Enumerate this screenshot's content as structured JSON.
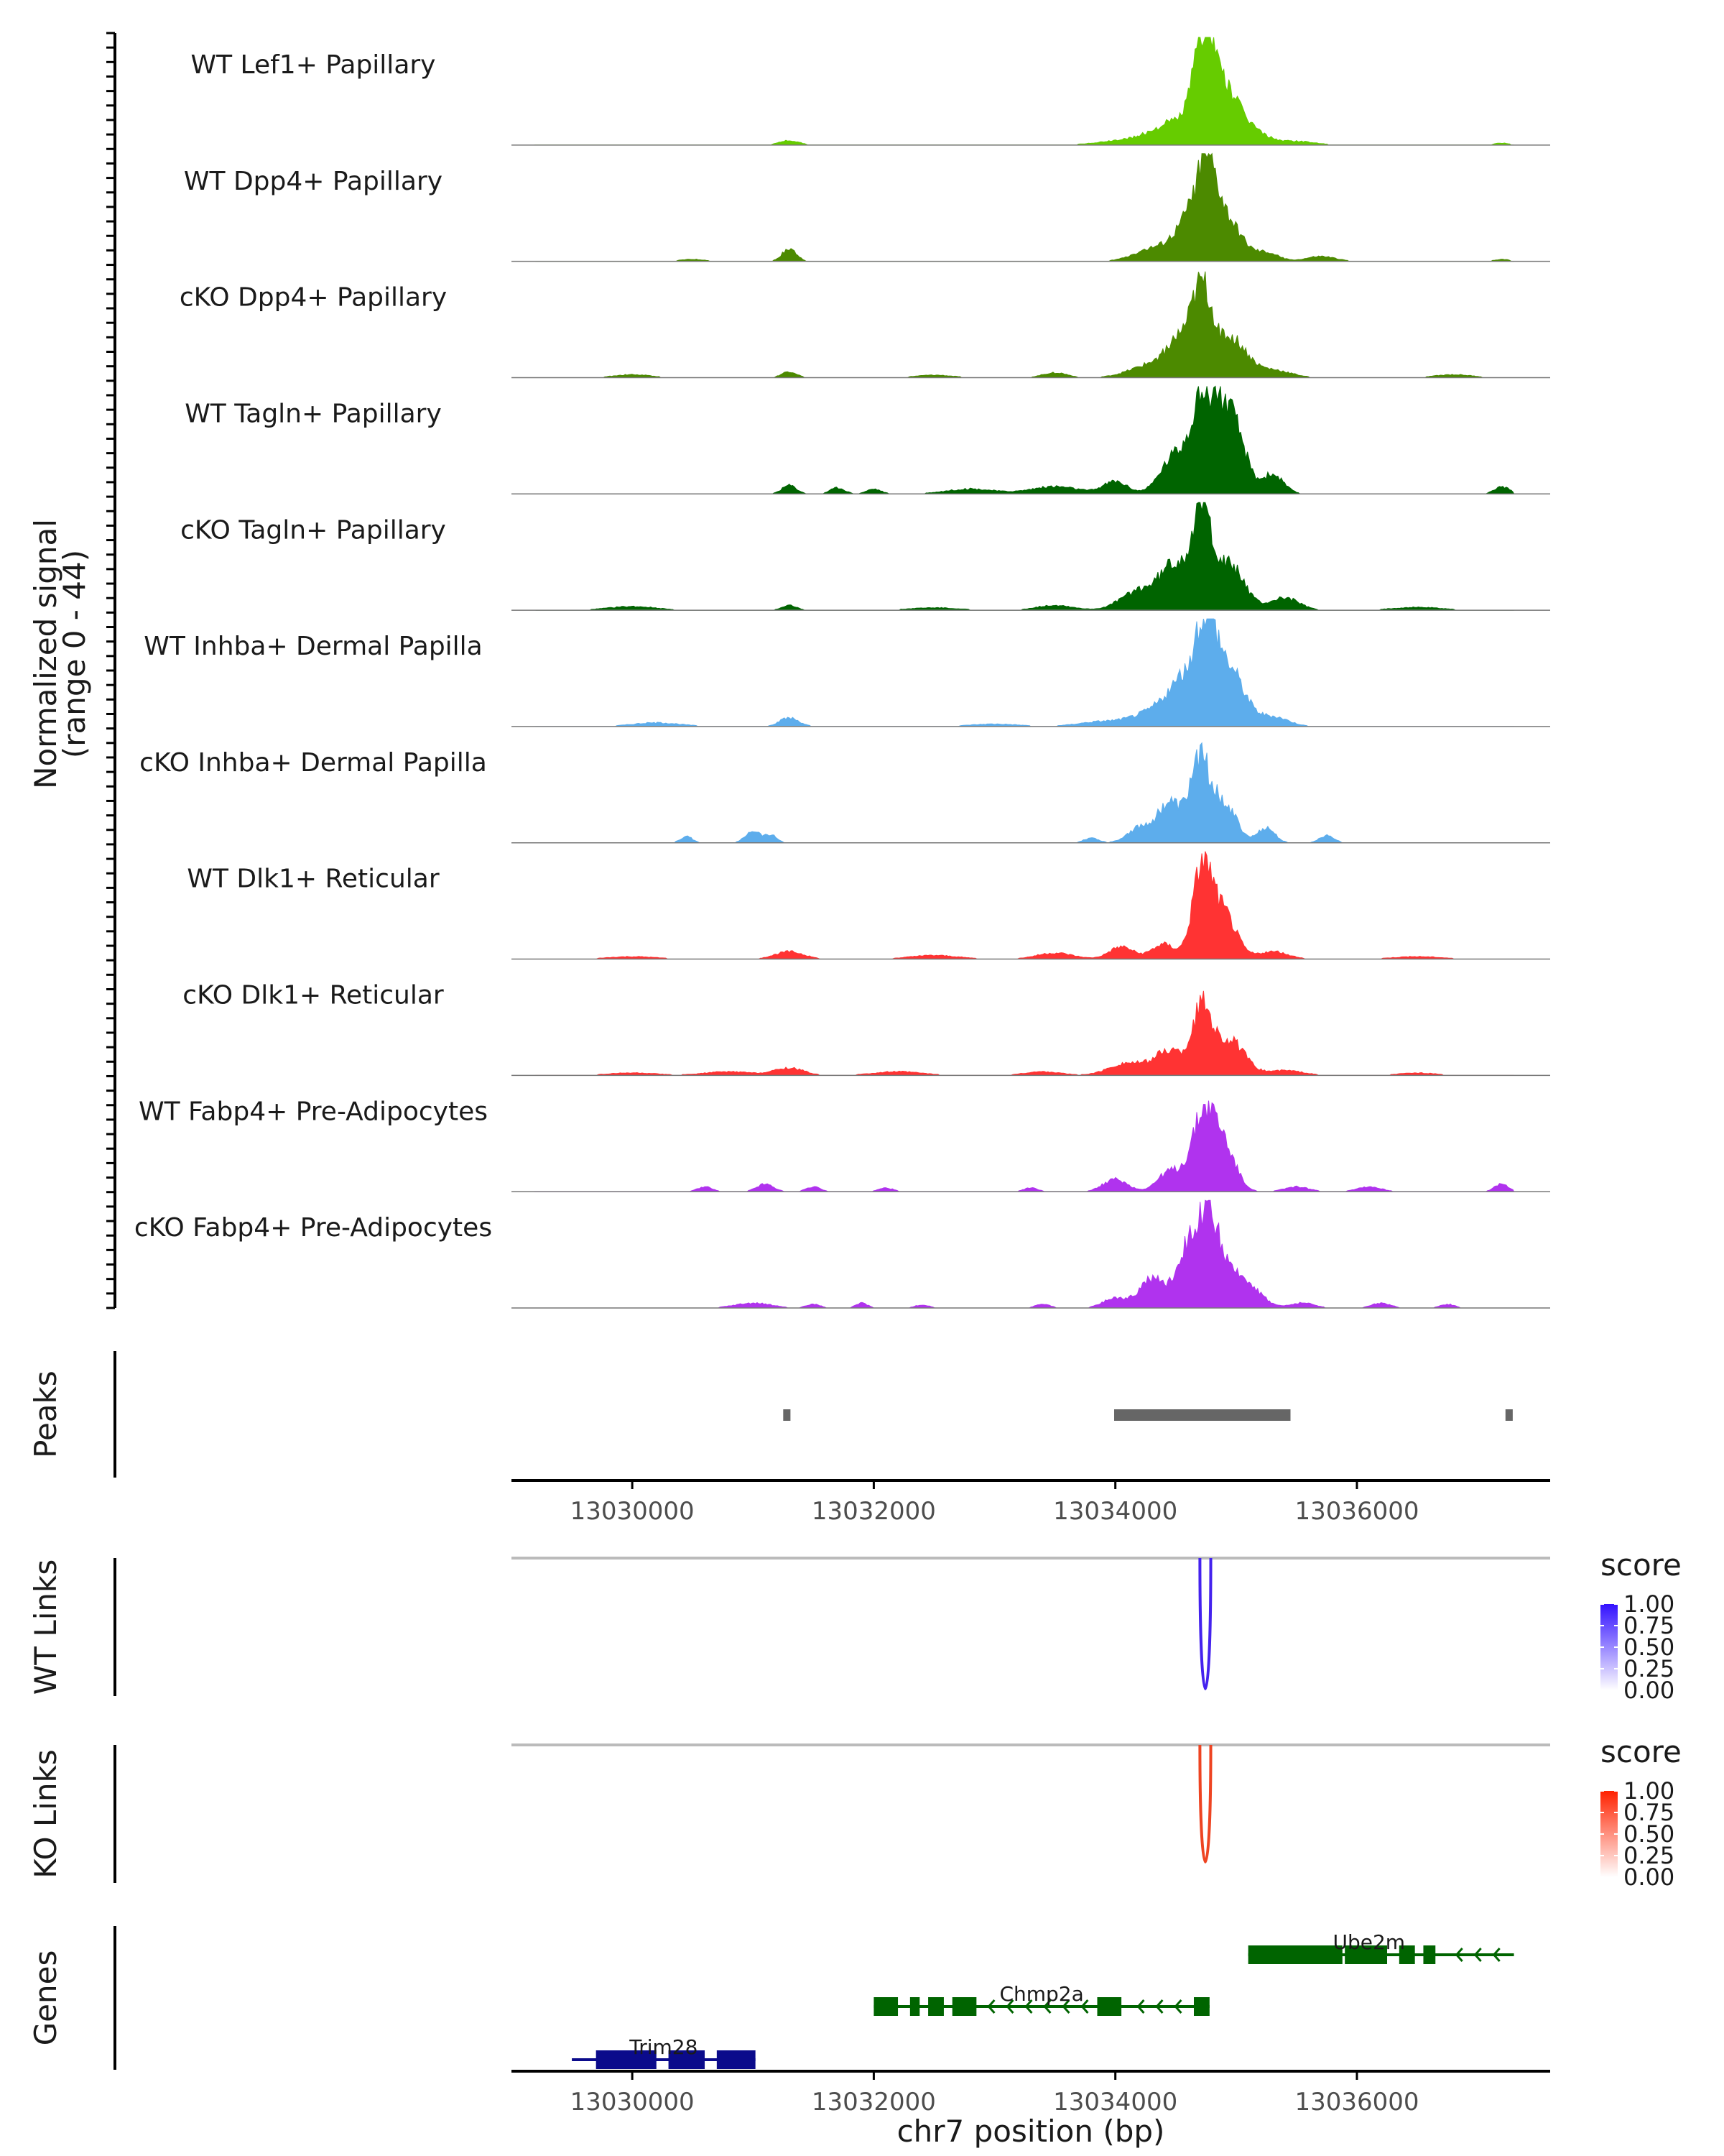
{
  "chart_data": {
    "type": "area",
    "title": "",
    "coverage_axis_label": "Normalized signal",
    "coverage_axis_range_label": "(range 0 - 44)",
    "y_range": [
      0,
      44
    ],
    "x_range": [
      13029000,
      13037600
    ],
    "xlabel": "chr7 position (bp)",
    "x_ticks": [
      13030000,
      13032000,
      13034000,
      13036000
    ],
    "x_tick_labels": [
      "13030000",
      "13032000",
      "13034000",
      "13036000"
    ],
    "tracks": [
      {
        "name": "WT Lef1+ Papillary",
        "color": "#66CC00",
        "peaks": [
          [
            13031300,
            1.8,
            80
          ],
          [
            13034200,
            2.5,
            260
          ],
          [
            13034500,
            8,
            160
          ],
          [
            13034740,
            40,
            90
          ],
          [
            13034900,
            18,
            120
          ],
          [
            13035100,
            6,
            140
          ],
          [
            13035500,
            1.5,
            150
          ],
          [
            13037200,
            0.8,
            60
          ]
        ]
      },
      {
        "name": "WT Dpp4+ Papillary",
        "color": "#4C8A00",
        "peaks": [
          [
            13031300,
            5,
            60
          ],
          [
            13030500,
            0.8,
            100
          ],
          [
            13034300,
            5,
            150
          ],
          [
            13034600,
            14,
            120
          ],
          [
            13034760,
            34,
            90
          ],
          [
            13034950,
            14,
            110
          ],
          [
            13035250,
            3.5,
            100
          ],
          [
            13035700,
            2,
            120
          ],
          [
            13037200,
            0.8,
            60
          ]
        ]
      },
      {
        "name": "cKO Dpp4+ Papillary",
        "color": "#4C8A00",
        "peaks": [
          [
            13030000,
            1.2,
            150
          ],
          [
            13031300,
            2.5,
            60
          ],
          [
            13032500,
            1,
            150
          ],
          [
            13033500,
            2,
            100
          ],
          [
            13034300,
            5,
            180
          ],
          [
            13034550,
            14,
            120
          ],
          [
            13034720,
            30,
            80
          ],
          [
            13034950,
            16,
            130
          ],
          [
            13035300,
            3,
            150
          ],
          [
            13036800,
            1.2,
            150
          ]
        ]
      },
      {
        "name": "WT Tagln+ Papillary",
        "color": "#006400",
        "peaks": [
          [
            13031300,
            3.5,
            60
          ],
          [
            13031700,
            2.5,
            60
          ],
          [
            13032000,
            2,
            60
          ],
          [
            13032800,
            2,
            200
          ],
          [
            13033500,
            3,
            200
          ],
          [
            13034000,
            5,
            100
          ],
          [
            13034500,
            16,
            120
          ],
          [
            13034700,
            32,
            80
          ],
          [
            13034850,
            30,
            80
          ],
          [
            13035000,
            24,
            90
          ],
          [
            13035300,
            8,
            90
          ],
          [
            13037200,
            3,
            60
          ]
        ]
      },
      {
        "name": "cKO Tagln+ Papillary",
        "color": "#006400",
        "peaks": [
          [
            13030000,
            1.5,
            200
          ],
          [
            13031300,
            2,
            60
          ],
          [
            13032500,
            1,
            200
          ],
          [
            13033500,
            2,
            150
          ],
          [
            13034200,
            8,
            150
          ],
          [
            13034500,
            18,
            120
          ],
          [
            13034720,
            38,
            80
          ],
          [
            13034950,
            18,
            120
          ],
          [
            13035400,
            5,
            120
          ],
          [
            13036500,
            1.2,
            200
          ]
        ]
      },
      {
        "name": "WT Inhba+ Dermal Papilla",
        "color": "#5DADEC",
        "peaks": [
          [
            13030200,
            1.5,
            200
          ],
          [
            13031300,
            3.5,
            80
          ],
          [
            13033000,
            1,
            200
          ],
          [
            13033900,
            2,
            200
          ],
          [
            13034300,
            5,
            160
          ],
          [
            13034550,
            16,
            130
          ],
          [
            13034750,
            38,
            90
          ],
          [
            13034950,
            22,
            120
          ],
          [
            13035300,
            4,
            130
          ]
        ]
      },
      {
        "name": "cKO Inhba+ Dermal Papilla",
        "color": "#5DADEC",
        "peaks": [
          [
            13030450,
            2.5,
            50
          ],
          [
            13031000,
            5,
            60
          ],
          [
            13031150,
            3,
            50
          ],
          [
            13033800,
            2,
            60
          ],
          [
            13034200,
            6,
            100
          ],
          [
            13034450,
            16,
            100
          ],
          [
            13034700,
            33,
            80
          ],
          [
            13034900,
            16,
            100
          ],
          [
            13035250,
            6,
            70
          ],
          [
            13035750,
            3,
            60
          ]
        ]
      },
      {
        "name": "WT Dlk1+ Reticular",
        "color": "#FF3333",
        "peaks": [
          [
            13030000,
            1,
            200
          ],
          [
            13031300,
            3,
            120
          ],
          [
            13032500,
            1.5,
            200
          ],
          [
            13033500,
            2.5,
            150
          ],
          [
            13034050,
            5,
            100
          ],
          [
            13034400,
            6,
            100
          ],
          [
            13034720,
            37,
            80
          ],
          [
            13034900,
            18,
            100
          ],
          [
            13035300,
            3,
            130
          ],
          [
            13036500,
            1,
            200
          ]
        ]
      },
      {
        "name": "cKO Dlk1+ Reticular",
        "color": "#FF3333",
        "peaks": [
          [
            13030000,
            1,
            200
          ],
          [
            13030800,
            1.5,
            200
          ],
          [
            13031300,
            3,
            120
          ],
          [
            13032200,
            1.5,
            200
          ],
          [
            13033400,
            1.5,
            150
          ],
          [
            13034100,
            5,
            150
          ],
          [
            13034450,
            10,
            120
          ],
          [
            13034720,
            27,
            80
          ],
          [
            13034950,
            14,
            120
          ],
          [
            13035400,
            2,
            150
          ],
          [
            13036500,
            1,
            150
          ]
        ]
      },
      {
        "name": "WT Fabp4+ Pre-Adipocytes",
        "color": "#B033EE",
        "peaks": [
          [
            13030600,
            2,
            60
          ],
          [
            13031100,
            3,
            70
          ],
          [
            13031500,
            2,
            60
          ],
          [
            13032100,
            1.5,
            60
          ],
          [
            13033300,
            1.5,
            60
          ],
          [
            13034000,
            5,
            100
          ],
          [
            13034450,
            8,
            100
          ],
          [
            13034730,
            30,
            100
          ],
          [
            13034900,
            16,
            100
          ],
          [
            13035500,
            2,
            100
          ],
          [
            13036100,
            2,
            100
          ],
          [
            13037200,
            3,
            60
          ]
        ]
      },
      {
        "name": "cKO Fabp4+ Pre-Adipocytes",
        "color": "#B033EE",
        "peaks": [
          [
            13031000,
            2,
            150
          ],
          [
            13031500,
            1.5,
            60
          ],
          [
            13031900,
            2,
            50
          ],
          [
            13032400,
            1.2,
            60
          ],
          [
            13033400,
            1.5,
            60
          ],
          [
            13034000,
            4,
            100
          ],
          [
            13034300,
            12,
            100
          ],
          [
            13034600,
            22,
            100
          ],
          [
            13034780,
            33,
            100
          ],
          [
            13035050,
            12,
            130
          ],
          [
            13035550,
            2,
            100
          ],
          [
            13036200,
            2,
            80
          ],
          [
            13036750,
            1.5,
            60
          ]
        ]
      }
    ],
    "peaks_track": {
      "label": "Peaks",
      "color": "#666666",
      "regions": [
        [
          13031250,
          13031310
        ],
        [
          13033990,
          13035450
        ],
        [
          13037230,
          13037290
        ]
      ]
    },
    "link_tracks": [
      {
        "label": "WT Links",
        "legend_title": "score",
        "color_low": "#FFFFFF",
        "color_high": "#3311FF",
        "legend_ticks": [
          "1.00",
          "0.75",
          "0.50",
          "0.25",
          "0.00"
        ],
        "links": [
          {
            "start": 13034700,
            "end": 13034790,
            "score": 0.95,
            "color": "#4422EE"
          }
        ]
      },
      {
        "label": "KO Links",
        "legend_title": "score",
        "color_low": "#FFFFFF",
        "color_high": "#FF2200",
        "legend_ticks": [
          "1.00",
          "0.75",
          "0.50",
          "0.25",
          "0.00"
        ],
        "links": [
          {
            "start": 13034700,
            "end": 13034790,
            "score": 0.85,
            "color": "#EE4422"
          }
        ]
      }
    ],
    "genes_track": {
      "label": "Genes",
      "genes": [
        {
          "name": "Ube2m",
          "color": "#006400",
          "start": 13035100,
          "end": 13037300,
          "strand": "-",
          "exons": [
            [
              13035100,
              13035880
            ],
            [
              13035900,
              13036250
            ],
            [
              13036350,
              13036480
            ],
            [
              13036550,
              13036650
            ]
          ]
        },
        {
          "name": "Chmp2a",
          "color": "#006400",
          "start": 13032000,
          "end": 13034780,
          "strand": "-",
          "exons": [
            [
              13032000,
              13032200
            ],
            [
              13032300,
              13032380
            ],
            [
              13032450,
              13032580
            ],
            [
              13032650,
              13032850
            ],
            [
              13033850,
              13034050
            ],
            [
              13034650,
              13034780
            ]
          ]
        },
        {
          "name": "Trim28",
          "color": "#0B0B8B",
          "start": 13029500,
          "end": 13031020,
          "strand": "+",
          "exons": [
            [
              13029700,
              13030200
            ],
            [
              13030300,
              13030600
            ],
            [
              13030700,
              13031020
            ]
          ]
        }
      ]
    }
  }
}
